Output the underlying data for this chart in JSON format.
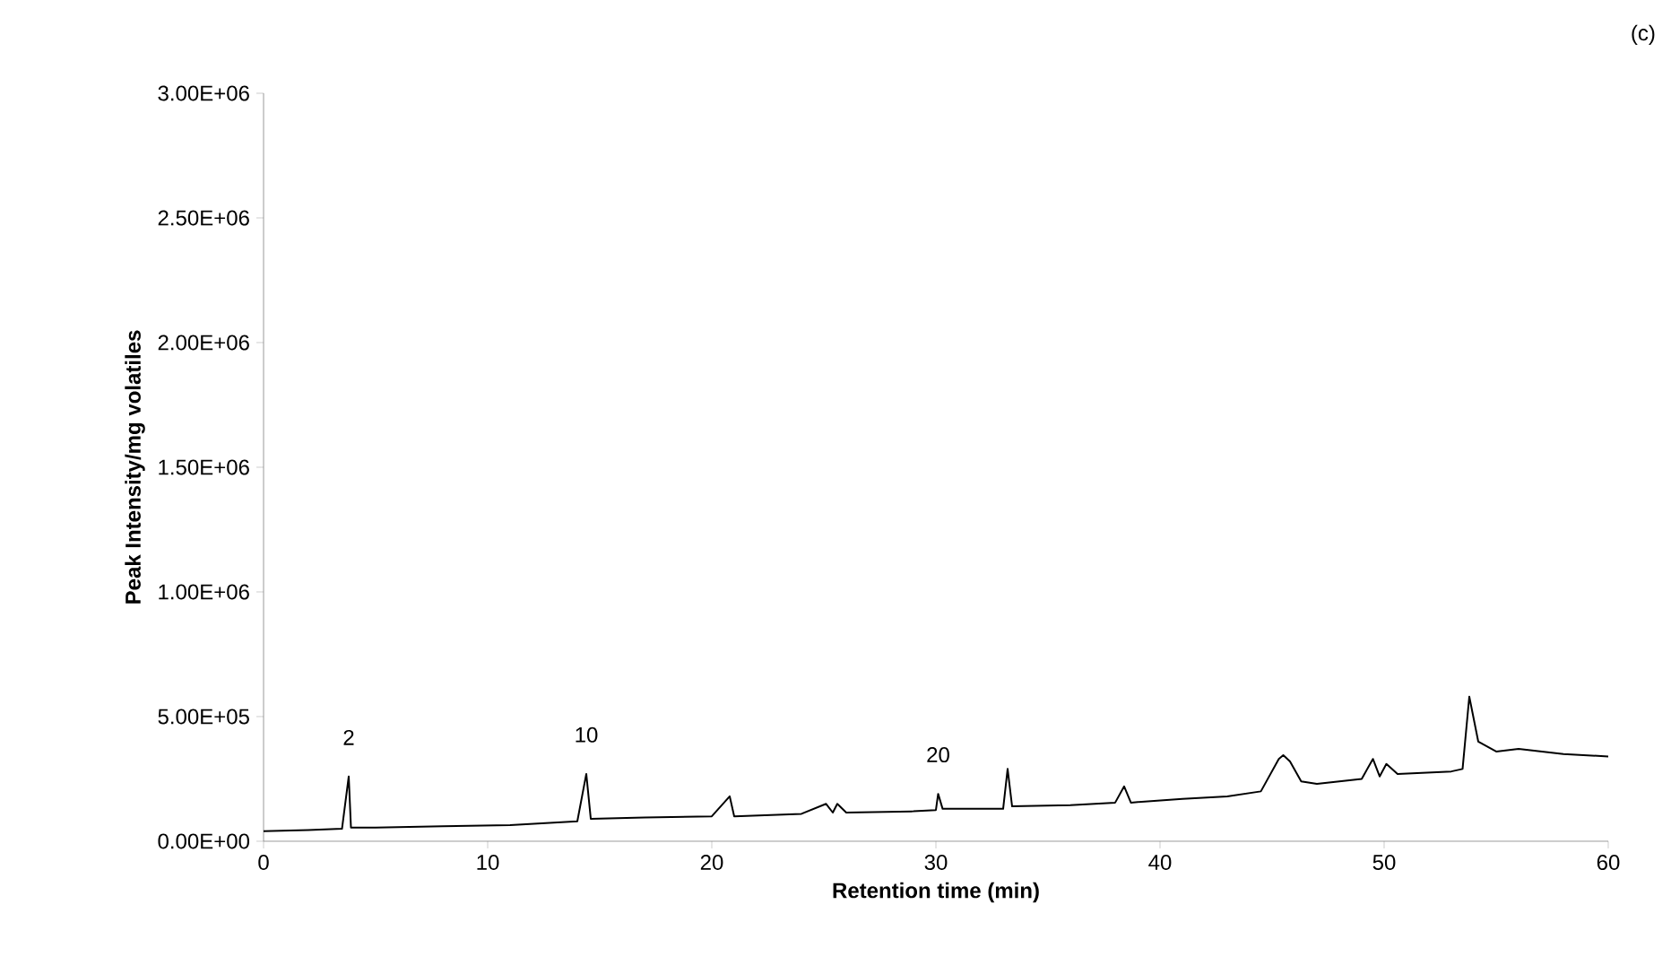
{
  "chart_data": {
    "type": "line",
    "xlabel": "Retention time (min)",
    "ylabel": "Peak Intensity/mg volatiles",
    "annotations": [
      {
        "text": "2",
        "x": 3.8,
        "y": 260000
      },
      {
        "text": "10",
        "x": 14.4,
        "y": 270000
      },
      {
        "text": "20",
        "x": 30.1,
        "y": 190000
      },
      "(c)"
    ],
    "xlim": [
      0,
      60
    ],
    "xticks": [
      0,
      10,
      20,
      30,
      40,
      50,
      60
    ],
    "ylim": [
      0,
      3000000
    ],
    "yticks": [
      {
        "value": 0,
        "label": "0.00E+00"
      },
      {
        "value": 500000,
        "label": "5.00E+05"
      },
      {
        "value": 1000000,
        "label": "1.00E+06"
      },
      {
        "value": 1500000,
        "label": "1.50E+06"
      },
      {
        "value": 2000000,
        "label": "2.00E+06"
      },
      {
        "value": 2500000,
        "label": "2.50E+06"
      },
      {
        "value": 3000000,
        "label": "3.00E+06"
      }
    ],
    "grid": false,
    "series": [
      {
        "color": "#000000",
        "x": [
          0,
          2,
          3.5,
          3.8,
          3.9,
          5,
          8,
          11,
          14,
          14.4,
          14.6,
          17,
          20,
          20.8,
          21,
          24,
          25.1,
          25.4,
          25.6,
          26,
          29,
          30,
          30.1,
          30.3,
          33,
          33.2,
          33.4,
          36,
          38,
          38.4,
          38.7,
          41,
          43,
          44.5,
          45.3,
          45.5,
          45.8,
          46.3,
          47,
          49,
          49.5,
          49.8,
          50.1,
          50.6,
          53,
          53.5,
          53.8,
          54.2,
          55,
          56,
          58,
          60
        ],
        "values": [
          40000,
          45000,
          50000,
          260000,
          55000,
          55000,
          60000,
          65000,
          80000,
          270000,
          90000,
          95000,
          100000,
          180000,
          100000,
          110000,
          150000,
          115000,
          150000,
          115000,
          120000,
          125000,
          190000,
          130000,
          130000,
          290000,
          140000,
          145000,
          155000,
          220000,
          155000,
          170000,
          180000,
          200000,
          330000,
          345000,
          320000,
          240000,
          230000,
          250000,
          330000,
          260000,
          310000,
          270000,
          280000,
          290000,
          580000,
          400000,
          360000,
          370000,
          350000,
          340000
        ]
      }
    ]
  }
}
